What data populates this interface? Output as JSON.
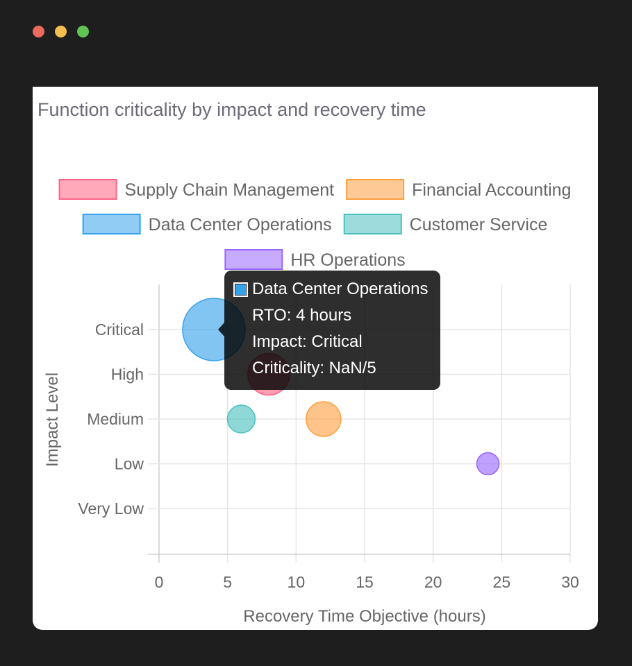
{
  "window_controls": [
    {
      "name": "close",
      "color": "#ec6a5e"
    },
    {
      "name": "minimize",
      "color": "#f4bf4f"
    },
    {
      "name": "maximize",
      "color": "#61c554"
    }
  ],
  "chart_data": {
    "type": "bubble",
    "title": "Function criticality by impact and recovery time",
    "xlabel": "Recovery Time Objective (hours)",
    "ylabel": "Impact Level",
    "xlim": [
      0,
      30
    ],
    "xticks": [
      0,
      5,
      10,
      15,
      20,
      25,
      30
    ],
    "ycategories": [
      "Very Low",
      "Low",
      "Medium",
      "High",
      "Critical"
    ],
    "grid": true,
    "legend_position": "top",
    "series": [
      {
        "name": "Supply Chain Management",
        "color": "#ff6384",
        "points": [
          {
            "x": 8,
            "y": "High",
            "r": 30
          }
        ]
      },
      {
        "name": "Financial Accounting",
        "color": "#ff9f40",
        "points": [
          {
            "x": 12,
            "y": "Medium",
            "r": 25
          }
        ]
      },
      {
        "name": "Data Center Operations",
        "color": "#36a2eb",
        "points": [
          {
            "x": 4,
            "y": "Critical",
            "r": 45
          }
        ]
      },
      {
        "name": "Customer Service",
        "color": "#4bc0c0",
        "points": [
          {
            "x": 6,
            "y": "Medium",
            "r": 20
          }
        ]
      },
      {
        "name": "HR Operations",
        "color": "#9966ff",
        "points": [
          {
            "x": 24,
            "y": "Low",
            "r": 16
          }
        ]
      }
    ]
  },
  "tooltip": {
    "title": "Data Center Operations",
    "color": "#36a2eb",
    "lines": [
      "RTO: 4 hours",
      "Impact: Critical",
      "Criticality: NaN/5"
    ]
  }
}
